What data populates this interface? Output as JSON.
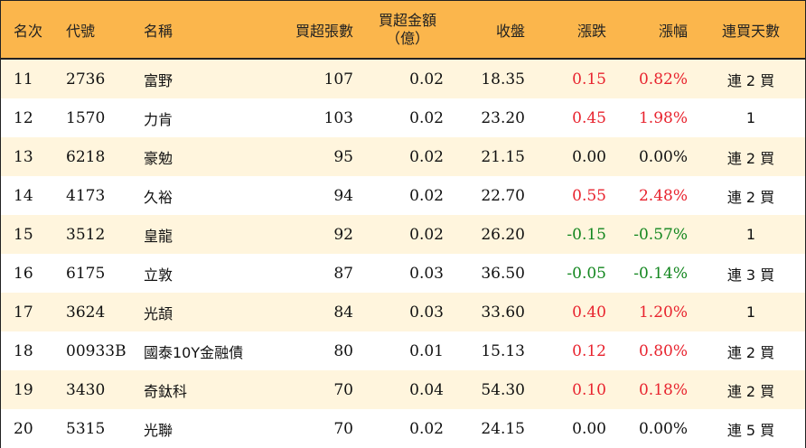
{
  "headers": {
    "rank": "名次",
    "code": "代號",
    "name": "名稱",
    "lots": "買超張數",
    "amount_line1": "買超金額",
    "amount_line2": "（億）",
    "close": "收盤",
    "change": "漲跌",
    "change_pct": "漲幅",
    "streak": "連買天數"
  },
  "rows": [
    {
      "rank": "11",
      "code": "2736",
      "name": "富野",
      "lots": "107",
      "amount": "0.02",
      "close": "18.35",
      "change": "0.15",
      "change_pct": "0.82%",
      "streak": "連 2 買",
      "trend": "up"
    },
    {
      "rank": "12",
      "code": "1570",
      "name": "力肯",
      "lots": "103",
      "amount": "0.02",
      "close": "23.20",
      "change": "0.45",
      "change_pct": "1.98%",
      "streak": "1",
      "trend": "up"
    },
    {
      "rank": "13",
      "code": "6218",
      "name": "豪勉",
      "lots": "95",
      "amount": "0.02",
      "close": "21.15",
      "change": "0.00",
      "change_pct": "0.00%",
      "streak": "連 2 買",
      "trend": "flat"
    },
    {
      "rank": "14",
      "code": "4173",
      "name": "久裕",
      "lots": "94",
      "amount": "0.02",
      "close": "22.70",
      "change": "0.55",
      "change_pct": "2.48%",
      "streak": "連 2 買",
      "trend": "up"
    },
    {
      "rank": "15",
      "code": "3512",
      "name": "皇龍",
      "lots": "92",
      "amount": "0.02",
      "close": "26.20",
      "change": "-0.15",
      "change_pct": "-0.57%",
      "streak": "1",
      "trend": "down"
    },
    {
      "rank": "16",
      "code": "6175",
      "name": "立敦",
      "lots": "87",
      "amount": "0.03",
      "close": "36.50",
      "change": "-0.05",
      "change_pct": "-0.14%",
      "streak": "連 3 買",
      "trend": "down"
    },
    {
      "rank": "17",
      "code": "3624",
      "name": "光頡",
      "lots": "84",
      "amount": "0.03",
      "close": "33.60",
      "change": "0.40",
      "change_pct": "1.20%",
      "streak": "1",
      "trend": "up"
    },
    {
      "rank": "18",
      "code": "00933B",
      "name": "國泰10Y金融債",
      "lots": "80",
      "amount": "0.01",
      "close": "15.13",
      "change": "0.12",
      "change_pct": "0.80%",
      "streak": "連 2 買",
      "trend": "up"
    },
    {
      "rank": "19",
      "code": "3430",
      "name": "奇鈦科",
      "lots": "70",
      "amount": "0.04",
      "close": "54.30",
      "change": "0.10",
      "change_pct": "0.18%",
      "streak": "連 2 買",
      "trend": "up"
    },
    {
      "rank": "20",
      "code": "5315",
      "name": "光聯",
      "lots": "70",
      "amount": "0.02",
      "close": "24.15",
      "change": "0.00",
      "change_pct": "0.00%",
      "streak": "連 5 買",
      "trend": "flat"
    }
  ],
  "colors": {
    "header_bg": "#fbb64c",
    "stripe_bg": "#fff5dd",
    "up": "#e8232e",
    "down": "#12861e",
    "flat": "#111111"
  }
}
